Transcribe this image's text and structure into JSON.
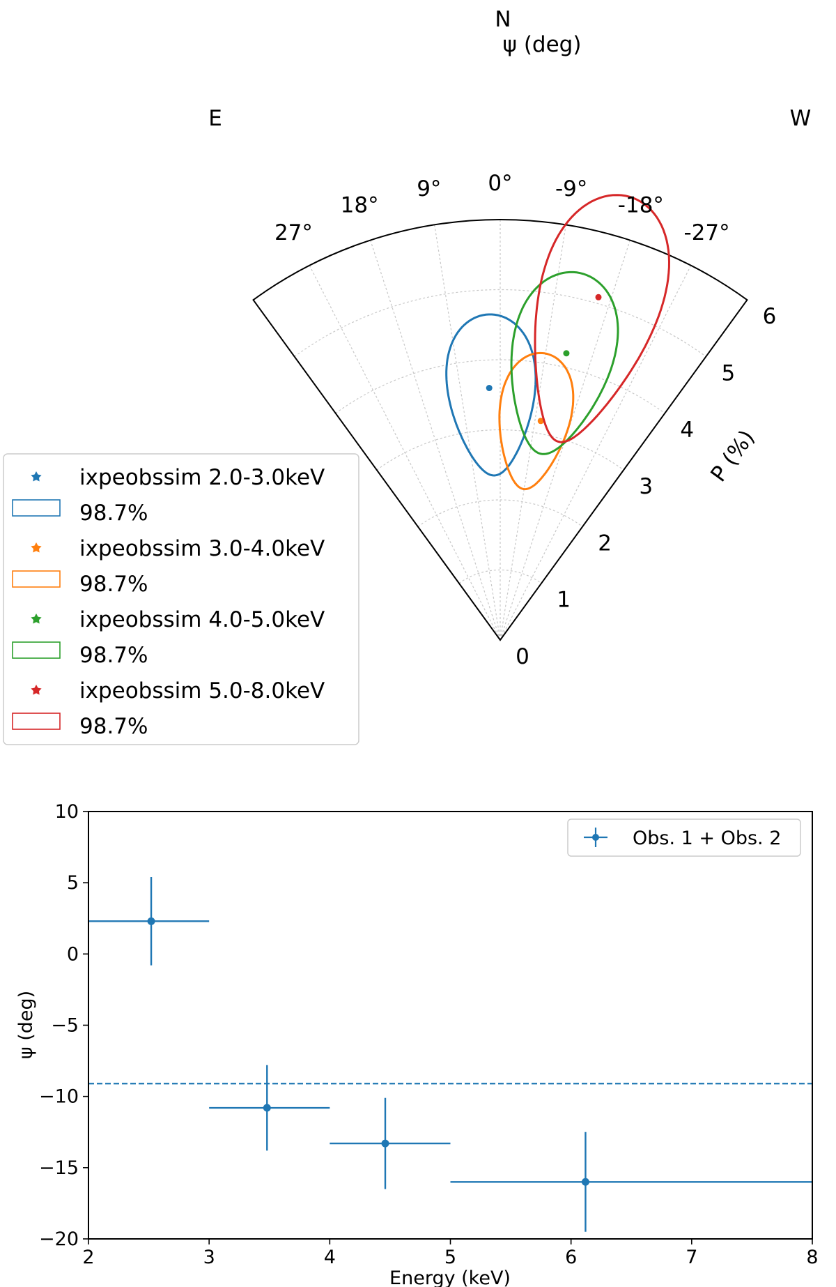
{
  "chart_data": [
    {
      "type": "scatter",
      "subtype": "polar-wedge",
      "title": "N",
      "theta_label": "ψ (deg)",
      "r_label": "P (%)",
      "left_label": "E",
      "right_label": "W",
      "theta_ticks": [
        27,
        18,
        9,
        0,
        -9,
        -18,
        -27
      ],
      "theta_tick_labels": [
        "27°",
        "18°",
        "9°",
        "0°",
        "-9°",
        "-18°",
        "-27°"
      ],
      "theta_range": [
        -36,
        36
      ],
      "r_ticks": [
        0,
        1,
        2,
        3,
        4,
        5,
        6
      ],
      "r_tick_labels": [
        "0",
        "1",
        "2",
        "3",
        "4",
        "5",
        "6"
      ],
      "r_range": [
        0,
        6
      ],
      "grid": true,
      "series": [
        {
          "name": "ixpeobssim 2.0-3.0keV",
          "contour_label": "98.7%",
          "color": "#1f77b4",
          "point": {
            "p": 3.6,
            "psi": 2.5
          },
          "ellipse": {
            "p": 3.5,
            "psi": 2.0,
            "dp": 1.15,
            "dpsi": 10.0
          }
        },
        {
          "name": "ixpeobssim 3.0-4.0keV",
          "contour_label": "98.7%",
          "color": "#ff7f0e",
          "point": {
            "p": 3.18,
            "psi": -10.5
          },
          "ellipse": {
            "p": 3.16,
            "psi": -8.8,
            "dp": 0.98,
            "dpsi": 9.0
          }
        },
        {
          "name": "ixpeobssim 4.0-5.0keV",
          "contour_label": "98.7%",
          "color": "#2ca02c",
          "point": {
            "p": 4.2,
            "psi": -13.0
          },
          "ellipse": {
            "p": 4.04,
            "psi": -12.3,
            "dp": 1.32,
            "dpsi": 10.0
          }
        },
        {
          "name": "ixpeobssim 5.0-8.0keV",
          "contour_label": "98.7%",
          "color": "#d62728",
          "point": {
            "p": 5.09,
            "psi": -16.0
          },
          "ellipse": {
            "p": 4.77,
            "psi": -16.3,
            "dp": 1.82,
            "dpsi": 10.0
          }
        }
      ]
    },
    {
      "type": "scatter",
      "subtype": "errorbar",
      "title": "",
      "xlabel": "Energy (keV)",
      "ylabel": "ψ (deg)",
      "xlim": [
        2,
        8
      ],
      "ylim": [
        -20,
        10
      ],
      "x_ticks": [
        2,
        3,
        4,
        5,
        6,
        7,
        8
      ],
      "x_tick_labels": [
        "2",
        "3",
        "4",
        "5",
        "6",
        "7",
        "8"
      ],
      "y_ticks": [
        10,
        5,
        0,
        -5,
        -10,
        -15,
        -20
      ],
      "y_tick_labels": [
        "10",
        "5",
        "0",
        "−5",
        "−10",
        "−15",
        "−20"
      ],
      "legend": {
        "label": "Obs. 1 + Obs. 2",
        "position": "top-right"
      },
      "color": "#1f77b4",
      "reference_line": {
        "y": -9.1,
        "style": "dashed"
      },
      "points": [
        {
          "x": 2.52,
          "y": 2.3,
          "xerr_low": 2.0,
          "xerr_high": 3.0,
          "yerr": 3.1
        },
        {
          "x": 3.48,
          "y": -10.8,
          "xerr_low": 3.0,
          "xerr_high": 4.0,
          "yerr": 3.0
        },
        {
          "x": 4.46,
          "y": -13.3,
          "xerr_low": 4.0,
          "xerr_high": 5.0,
          "yerr": 3.2
        },
        {
          "x": 6.12,
          "y": -16.0,
          "xerr_low": 5.0,
          "xerr_high": 8.0,
          "yerr": 3.5
        }
      ]
    }
  ]
}
